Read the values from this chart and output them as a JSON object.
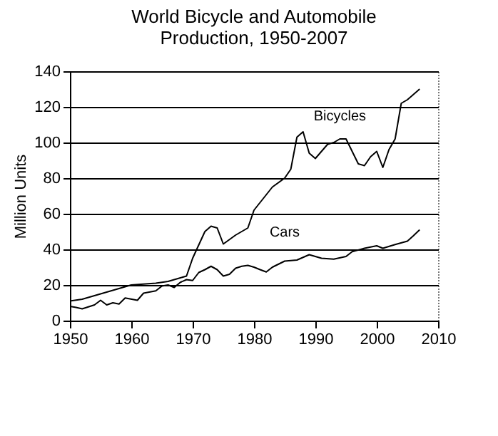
{
  "chart_data": {
    "type": "line",
    "title": "World Bicycle and Automobile\nProduction, 1950-2007",
    "ylabel": "Million Units",
    "xlim": [
      1950,
      2010
    ],
    "xticks": [
      1950,
      1960,
      1970,
      1980,
      1990,
      2000,
      2010
    ],
    "ylim": [
      0,
      140
    ],
    "yticks": [
      0,
      20,
      40,
      60,
      80,
      100,
      120,
      140
    ],
    "grid": "y",
    "legend": false,
    "series": [
      {
        "name": "Bicycles",
        "color": "#000000",
        "x": [
          1950,
          1952,
          1954,
          1956,
          1958,
          1960,
          1962,
          1964,
          1966,
          1968,
          1969,
          1970,
          1972,
          1973,
          1974,
          1975,
          1977,
          1979,
          1980,
          1983,
          1985,
          1986,
          1987,
          1988,
          1989,
          1990,
          1991,
          1992,
          1993,
          1994,
          1995,
          1996,
          1997,
          1998,
          1999,
          2000,
          2001,
          2002,
          2003,
          2004,
          2005,
          2006,
          2007
        ],
        "values": [
          11,
          12,
          14,
          16,
          18,
          20,
          20.5,
          21,
          22,
          24,
          25,
          35,
          50,
          53,
          52,
          43,
          48,
          52,
          62,
          75,
          80,
          85,
          103,
          106,
          94,
          91,
          95,
          99,
          100,
          102,
          102,
          95,
          88,
          87,
          92,
          95,
          86,
          96,
          102,
          122,
          124,
          127,
          130
        ]
      },
      {
        "name": "Cars",
        "color": "#000000",
        "x": [
          1950,
          1951,
          1952,
          1954,
          1955,
          1956,
          1957,
          1958,
          1959,
          1961,
          1962,
          1964,
          1965,
          1966,
          1967,
          1968,
          1969,
          1970,
          1971,
          1972,
          1973,
          1974,
          1975,
          1976,
          1977,
          1978,
          1979,
          1980,
          1981,
          1982,
          1983,
          1985,
          1987,
          1989,
          1991,
          1993,
          1995,
          1996,
          1998,
          2000,
          2001,
          2003,
          2005,
          2006,
          2007
        ],
        "values": [
          8,
          7.4,
          6.6,
          8.8,
          11.4,
          8.8,
          10,
          9.3,
          12.7,
          11.4,
          15.4,
          16.7,
          19.4,
          20,
          18.6,
          21.5,
          23,
          22.5,
          27,
          28.6,
          30.5,
          28.6,
          25,
          26,
          29.4,
          30.5,
          31,
          30,
          28.6,
          27.3,
          30,
          33.4,
          34,
          37,
          35,
          34.5,
          36,
          38.7,
          40.6,
          42,
          40.6,
          42.7,
          44.6,
          47.7,
          51
        ]
      }
    ]
  }
}
